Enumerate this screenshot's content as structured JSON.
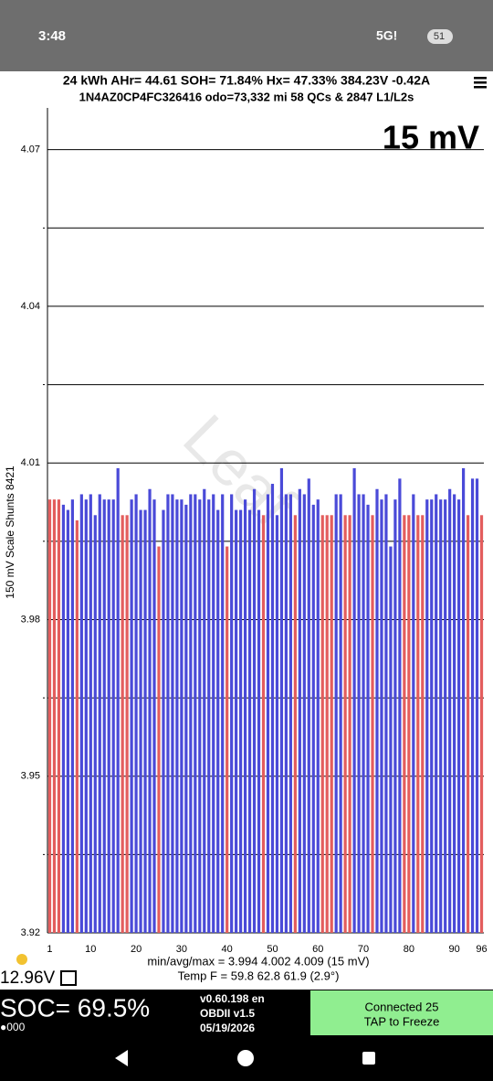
{
  "status_bar": {
    "time": "3:48",
    "network": "5G!",
    "battery": "51"
  },
  "header": {
    "line1": "24 kWh  AHr= 44.61  SOH= 71.84%  Hx= 47.33%  384.23V -0.42A",
    "line2": "1N4AZ0CP4FC326416 odo=73,332 mi  58 QCs & 2847 L1/L2s"
  },
  "chart_data": {
    "type": "bar",
    "title": "15 mV",
    "y_label": "150 mV Scale  Shunts 8421",
    "watermark": "Leaf",
    "categories": [
      1,
      null,
      null,
      null,
      null,
      null,
      null,
      null,
      null,
      10,
      null,
      null,
      null,
      null,
      null,
      null,
      null,
      null,
      null,
      20,
      null,
      null,
      null,
      null,
      null,
      null,
      null,
      null,
      null,
      30,
      null,
      null,
      null,
      null,
      null,
      null,
      null,
      null,
      null,
      40,
      null,
      null,
      null,
      null,
      null,
      null,
      null,
      null,
      null,
      50,
      null,
      null,
      null,
      null,
      null,
      null,
      null,
      null,
      null,
      60,
      null,
      null,
      null,
      null,
      null,
      null,
      null,
      null,
      null,
      70,
      null,
      null,
      null,
      null,
      null,
      null,
      null,
      null,
      null,
      80,
      null,
      null,
      null,
      null,
      null,
      null,
      null,
      null,
      null,
      90,
      null,
      null,
      null,
      null,
      null,
      96
    ],
    "values": [
      4.003,
      4.003,
      4.003,
      4.002,
      4.001,
      4.003,
      3.999,
      4.004,
      4.003,
      4.004,
      4.0,
      4.004,
      4.003,
      4.003,
      4.003,
      4.009,
      4.0,
      4.0,
      4.003,
      4.004,
      4.001,
      4.001,
      4.005,
      4.003,
      3.994,
      4.001,
      4.004,
      4.004,
      4.003,
      4.003,
      4.002,
      4.004,
      4.004,
      4.003,
      4.005,
      4.003,
      4.004,
      4.001,
      4.004,
      3.994,
      4.004,
      4.001,
      4.001,
      4.003,
      4.001,
      4.005,
      4.001,
      4.0,
      4.004,
      4.006,
      4.0,
      4.009,
      4.004,
      4.004,
      4.0,
      4.005,
      4.004,
      4.007,
      4.002,
      4.003,
      4.0,
      4.0,
      4.0,
      4.004,
      4.004,
      4.0,
      4.0,
      4.009,
      4.004,
      4.004,
      4.002,
      4.0,
      4.005,
      4.003,
      4.004,
      3.994,
      4.003,
      4.007,
      4.0,
      4.0,
      4.004,
      4.0,
      4.0,
      4.003,
      4.003,
      4.004,
      4.003,
      4.003,
      4.005,
      4.004,
      4.003,
      4.009,
      4.0,
      4.007,
      4.007,
      4.0
    ],
    "colors": [
      "#e35d5d",
      "#e35d5d",
      "#e35d5d",
      "#4a4ad8",
      "#4a4ad8",
      "#4a4ad8",
      "#e35d5d",
      "#4a4ad8",
      "#4a4ad8",
      "#4a4ad8",
      "#4a4ad8",
      "#4a4ad8",
      "#4a4ad8",
      "#4a4ad8",
      "#4a4ad8",
      "#4a4ad8",
      "#e35d5d",
      "#e35d5d",
      "#4a4ad8",
      "#4a4ad8",
      "#4a4ad8",
      "#4a4ad8",
      "#4a4ad8",
      "#4a4ad8",
      "#e35d5d",
      "#4a4ad8",
      "#4a4ad8",
      "#4a4ad8",
      "#4a4ad8",
      "#4a4ad8",
      "#4a4ad8",
      "#4a4ad8",
      "#4a4ad8",
      "#4a4ad8",
      "#4a4ad8",
      "#4a4ad8",
      "#4a4ad8",
      "#4a4ad8",
      "#4a4ad8",
      "#e35d5d",
      "#4a4ad8",
      "#4a4ad8",
      "#4a4ad8",
      "#4a4ad8",
      "#4a4ad8",
      "#4a4ad8",
      "#4a4ad8",
      "#e35d5d",
      "#4a4ad8",
      "#4a4ad8",
      "#4a4ad8",
      "#4a4ad8",
      "#4a4ad8",
      "#4a4ad8",
      "#e35d5d",
      "#4a4ad8",
      "#4a4ad8",
      "#4a4ad8",
      "#4a4ad8",
      "#4a4ad8",
      "#e35d5d",
      "#e35d5d",
      "#e35d5d",
      "#4a4ad8",
      "#4a4ad8",
      "#e35d5d",
      "#e35d5d",
      "#4a4ad8",
      "#4a4ad8",
      "#4a4ad8",
      "#4a4ad8",
      "#e35d5d",
      "#4a4ad8",
      "#4a4ad8",
      "#4a4ad8",
      "#4a4ad8",
      "#4a4ad8",
      "#4a4ad8",
      "#e35d5d",
      "#e35d5d",
      "#4a4ad8",
      "#e35d5d",
      "#e35d5d",
      "#4a4ad8",
      "#4a4ad8",
      "#4a4ad8",
      "#4a4ad8",
      "#4a4ad8",
      "#4a4ad8",
      "#4a4ad8",
      "#4a4ad8",
      "#4a4ad8",
      "#e35d5d",
      "#4a4ad8",
      "#4a4ad8",
      "#e35d5d"
    ],
    "ylim": [
      3.92,
      4.078
    ],
    "yticks": [
      4.07,
      4.04,
      4.01,
      3.98,
      3.95,
      3.92
    ],
    "minor_yticks": [
      4.055,
      4.025,
      3.995,
      3.965,
      3.935
    ],
    "grid": true
  },
  "footer": {
    "stats": "min/avg/max = 3.994 4.002 4.009  (15 mV)",
    "temp": "Temp F = 59.8  62.8  61.9  (2.9°)",
    "aux_voltage": "12.96V"
  },
  "bottom_bar": {
    "soc": "SOC= 69.5%",
    "indicator": "●000",
    "version": "v0.60.198 en",
    "obd": "OBDII  v1.5",
    "date": "05/19/2026",
    "connected": "Connected 25",
    "tap": "TAP to Freeze"
  }
}
